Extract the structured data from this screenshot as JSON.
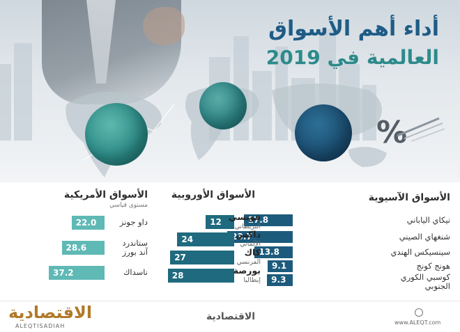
{
  "title": {
    "line1": "أداء أهم الأسواق",
    "line2": "العالمية في 2019"
  },
  "colors": {
    "asia_bar": "#1d5b7c",
    "europe_bar": "#1f6a7e",
    "america_bar": "#5fb9b5",
    "title_blue": "#1e5c86",
    "title_teal": "#2e8a8b"
  },
  "icons": [
    "globe-americas-icon",
    "globe-europe-icon",
    "globe-asia-icon",
    "percent-icon",
    "site-icon"
  ],
  "chart_data": [
    {
      "type": "bar",
      "title": "الأسواق الآسيوية",
      "categories": [
        "نيكاي الياباني",
        "شنغهاي الصيني",
        "سينسيكس الهندي",
        "هونج كونج",
        "كوسبي الكوري الجنوبي"
      ],
      "values": [
        17.8,
        23.7,
        13.8,
        9.1,
        9.3
      ],
      "value_labels": [
        "17.8",
        "23.7",
        "13.8",
        "9.1",
        "9.3"
      ]
    },
    {
      "type": "bar",
      "title": "الأسواق الأوروبية",
      "categories": [
        {
          "name": "فوتسي",
          "sub": "البريطاني"
        },
        {
          "name": "داكس",
          "sub": "الألماني"
        },
        {
          "name": "كاك",
          "sub": "الفرنسي"
        },
        {
          "name": "بورصة",
          "sub": "إيطاليا"
        }
      ],
      "values": [
        12,
        24,
        27,
        28
      ],
      "value_labels": [
        "12",
        "24",
        "27",
        "28"
      ]
    },
    {
      "type": "bar",
      "title": "الأسواق الأمريكية",
      "subtitle": "مستوى قياسي",
      "categories": [
        "داو جونز",
        "ستاندرد آند بورز",
        "ناسداك"
      ],
      "values": [
        22.0,
        28.6,
        37.2
      ],
      "value_labels": [
        "22.0",
        "28.6",
        "37.2"
      ]
    }
  ],
  "footer": {
    "logo_left": "الاقتصادية",
    "logo_left_sub": "ALEQTISADIAH",
    "logo_mid": "الاقتصادية",
    "url": "www.ALEQT.com"
  }
}
